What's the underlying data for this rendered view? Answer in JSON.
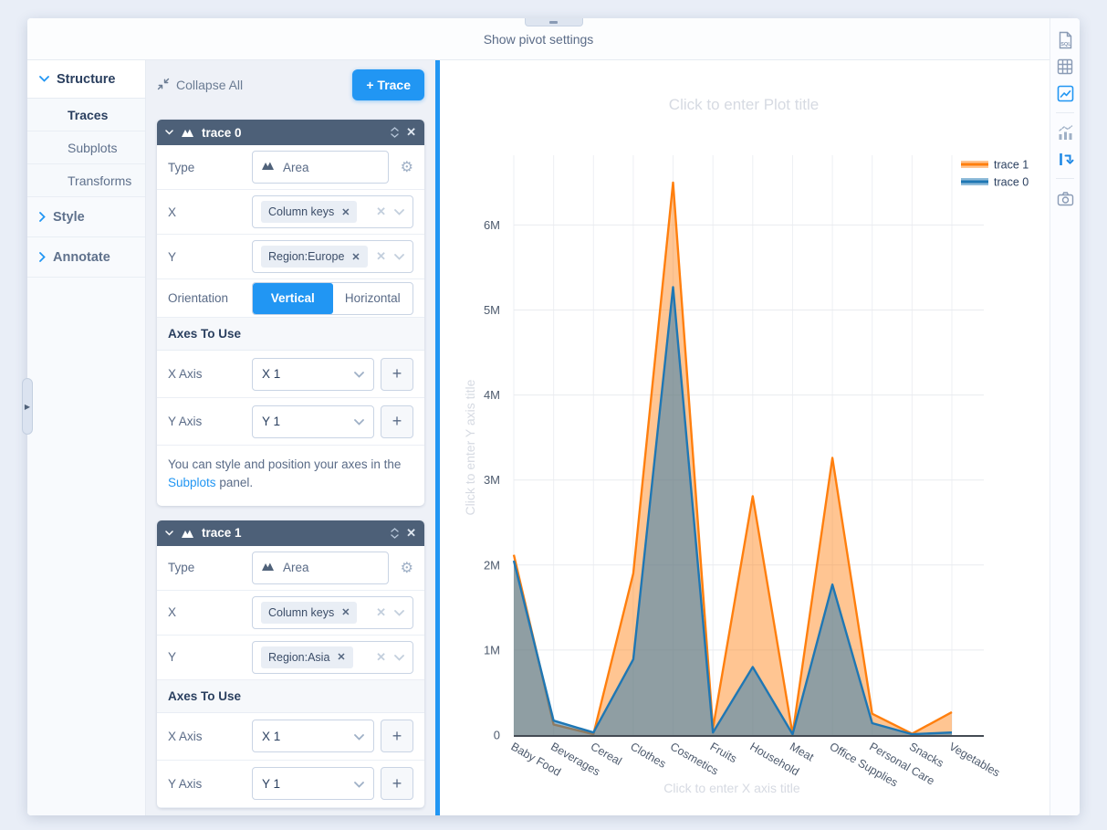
{
  "window": {
    "top_bar_label": "Show pivot settings"
  },
  "nav": {
    "structure_label": "Structure",
    "structure_items": [
      {
        "label": "Traces",
        "active": true
      },
      {
        "label": "Subplots",
        "active": false
      },
      {
        "label": "Transforms",
        "active": false
      }
    ],
    "style_label": "Style",
    "annotate_label": "Annotate"
  },
  "panel": {
    "collapse_all_label": "Collapse All",
    "add_trace_label": "+ Trace",
    "plus_label": "+",
    "traces": [
      {
        "title": "trace 0",
        "type_label": "Type",
        "type_value": "Area",
        "x_label": "X",
        "x_value": "Column keys",
        "y_label": "Y",
        "y_value": "Region:Europe",
        "chip_remove": "✕",
        "orientation_label": "Orientation",
        "orientation_vertical": "Vertical",
        "orientation_horizontal": "Horizontal",
        "orientation_selected": "Vertical",
        "axes_header": "Axes To Use",
        "x_axis_label": "X Axis",
        "x_axis_value": "X 1",
        "y_axis_label": "Y Axis",
        "y_axis_value": "Y 1",
        "info_prefix": "You can style and position your axes in the",
        "info_link": "Subplots",
        "info_suffix": "panel."
      },
      {
        "title": "trace 1",
        "type_label": "Type",
        "type_value": "Area",
        "x_label": "X",
        "x_value": "Column keys",
        "y_label": "Y",
        "y_value": "Region:Asia",
        "chip_remove": "✕",
        "axes_header": "Axes To Use",
        "x_axis_label": "X Axis",
        "x_axis_value": "X 1",
        "y_axis_label": "Y Axis",
        "y_axis_value": "Y 1"
      }
    ]
  },
  "chart": {
    "title_placeholder": "Click to enter Plot title",
    "x_title_placeholder": "Click to enter X axis title",
    "y_title_placeholder": "Click to enter Y axis title",
    "chart_data": {
      "type": "area",
      "categories": [
        "Baby Food",
        "Beverages",
        "Cereal",
        "Clothes",
        "Cosmetics",
        "Fruits",
        "Household",
        "Meat",
        "Office Supplies",
        "Personal Care",
        "Snacks",
        "Vegetables"
      ],
      "series": [
        {
          "name": "trace 1",
          "y_source": "Region:Asia",
          "color": "#ff7f0e",
          "fill": "rgba(255,127,14,0.45)",
          "values": [
            2120000,
            125000,
            10000,
            1900000,
            6500000,
            80000,
            2810000,
            10000,
            3260000,
            250000,
            15000,
            270000
          ]
        },
        {
          "name": "trace 0",
          "y_source": "Region:Europe",
          "color": "#1f77b4",
          "fill": "rgba(31,119,180,0.5)",
          "values": [
            2050000,
            170000,
            30000,
            890000,
            5270000,
            30000,
            800000,
            10000,
            1770000,
            140000,
            10000,
            30000
          ]
        }
      ],
      "y_ticks": [
        "0",
        "1M",
        "2M",
        "3M",
        "4M",
        "5M",
        "6M"
      ],
      "y_tick_step": 1000000,
      "ylim": [
        0,
        6860000
      ],
      "xlabel": "",
      "ylabel": "",
      "grid": true,
      "legend_position": "top-right"
    }
  },
  "right_rail": {
    "sql_label": "SQL",
    "icons": [
      "sql",
      "table",
      "chart-image",
      "chart-builder",
      "pivot",
      "camera"
    ]
  }
}
